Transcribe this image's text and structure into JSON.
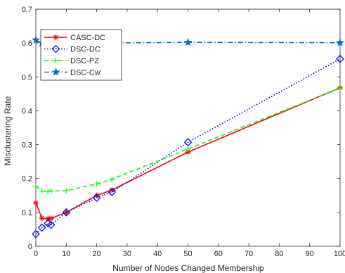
{
  "chart_data": {
    "type": "line",
    "title": "",
    "xlabel": "Number of Nodes Changed Membership",
    "ylabel": "Misclustering Rate",
    "xlim": [
      0,
      100
    ],
    "ylim": [
      0,
      0.7
    ],
    "x_ticks": [
      0,
      10,
      20,
      30,
      40,
      50,
      60,
      70,
      80,
      90,
      100
    ],
    "y_ticks": [
      0,
      0.1,
      0.2,
      0.3,
      0.4,
      0.5,
      0.6,
      0.7
    ],
    "grid": false,
    "legend_position": "top-left",
    "series": [
      {
        "name": "CASC-DC",
        "color": "#ff0000",
        "line_style": "solid",
        "marker": "asterisk",
        "x": [
          0,
          2,
          4,
          5,
          10,
          20,
          25,
          50,
          100
        ],
        "y": [
          0.128,
          0.083,
          0.081,
          0.082,
          0.1,
          0.15,
          0.166,
          0.278,
          0.468
        ]
      },
      {
        "name": "DSC-DC",
        "color": "#0000ff",
        "line_style": "dotted",
        "marker": "diamond",
        "x": [
          0,
          2,
          4,
          5,
          10,
          20,
          25,
          50,
          100
        ],
        "y": [
          0.036,
          0.055,
          0.068,
          0.063,
          0.1,
          0.143,
          0.16,
          0.307,
          0.553
        ]
      },
      {
        "name": "DSC-PZ",
        "color": "#00ff00",
        "line_style": "dashed",
        "marker": "plus",
        "x": [
          0,
          2,
          4,
          5,
          10,
          20,
          25,
          50,
          100
        ],
        "y": [
          0.177,
          0.163,
          0.162,
          0.163,
          0.164,
          0.184,
          0.198,
          0.287,
          0.467
        ]
      },
      {
        "name": "DSC-Cw",
        "color": "#0072bd",
        "line_style": "dashdot",
        "marker": "pentagram",
        "x": [
          0,
          2,
          4,
          5,
          10,
          20,
          25,
          50,
          100
        ],
        "y": [
          0.609,
          0.6,
          0.606,
          0.601,
          0.601,
          0.604,
          0.6,
          0.602,
          0.601
        ]
      }
    ]
  }
}
